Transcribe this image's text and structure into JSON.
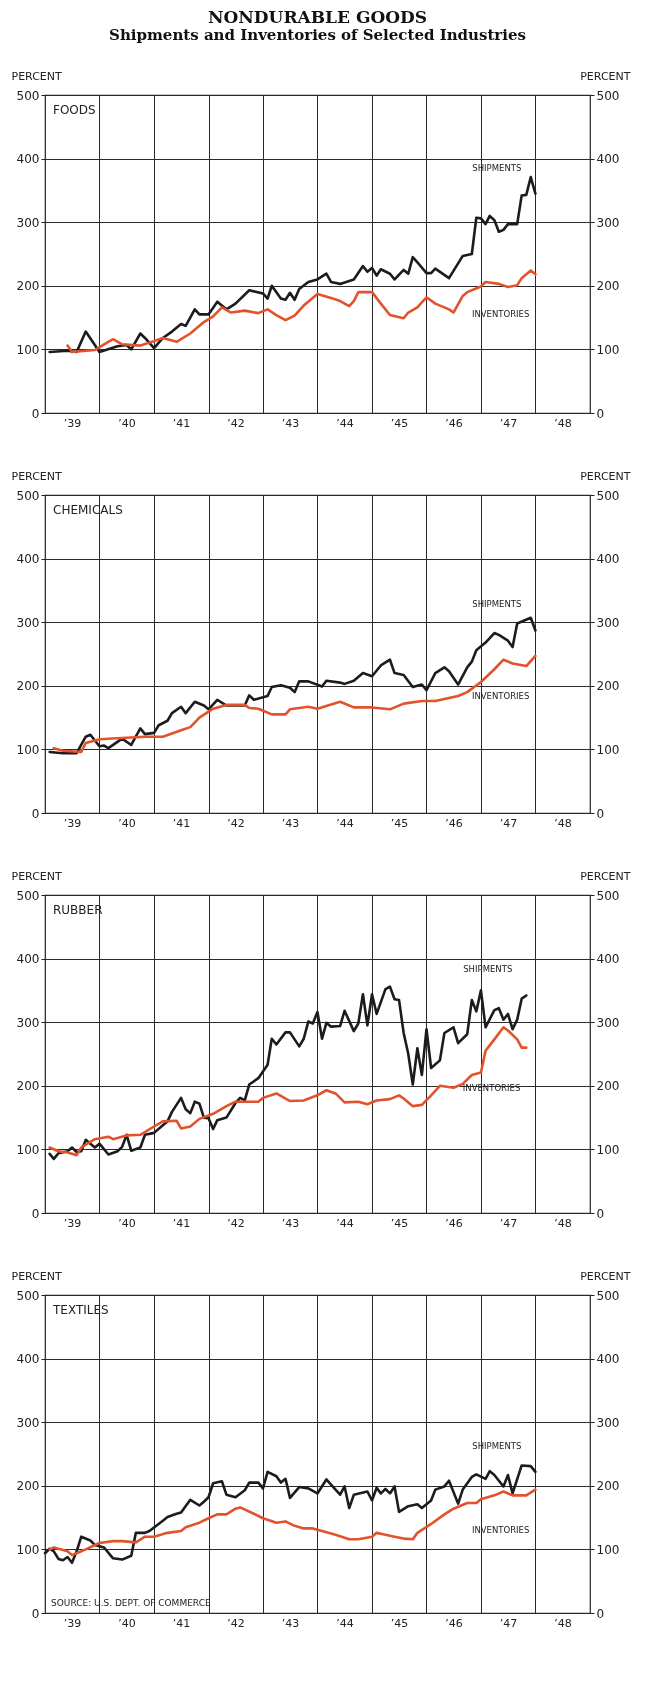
{
  "chart_data": [
    {
      "type": "line",
      "title": "NONDURABLE GOODS",
      "subtitle": "Shipments and Inventories of Selected Industries",
      "ylabel": "PERCENT",
      "y2label": "PERCENT",
      "annotations": [
        "FOODS"
      ],
      "xlim": [
        "1939",
        "1949"
      ],
      "xticks": [
        {
          "value": "1939-07",
          "label": "’39"
        },
        {
          "value": "1940",
          "label": null
        },
        {
          "value": "1940-07",
          "label": "’40"
        },
        {
          "value": "1941",
          "label": null
        },
        {
          "value": "1941-07",
          "label": "’41"
        },
        {
          "value": "1942",
          "label": null
        },
        {
          "value": "1942-07",
          "label": "’42"
        },
        {
          "value": "1943",
          "label": null
        },
        {
          "value": "1943-07",
          "label": "’43"
        },
        {
          "value": "1944",
          "label": null
        },
        {
          "value": "1944-07",
          "label": "’44"
        },
        {
          "value": "1945",
          "label": null
        },
        {
          "value": "1945-07",
          "label": "’45"
        },
        {
          "value": "1946",
          "label": null
        },
        {
          "value": "1946-07",
          "label": "’46"
        },
        {
          "value": "1947",
          "label": null
        },
        {
          "value": "1947-07",
          "label": "’47"
        },
        {
          "value": "1948",
          "label": null
        },
        {
          "value": "1948-07",
          "label": "’48"
        }
      ],
      "ylim": [
        0,
        500
      ],
      "yticks": [
        0,
        100,
        200,
        300,
        400,
        500
      ],
      "y2lim": [
        0,
        500
      ],
      "y2ticks": [
        0,
        100,
        200,
        300,
        400,
        500
      ],
      "grid": true,
      "series": [
        {
          "name": "SHIPMENTS",
          "color": "#1c1c1c",
          "x": [
            "1939-02",
            "1939-06",
            "1939-08",
            "1939-10",
            "1939-12",
            "1940-01",
            "1940-05",
            "1940-07",
            "1940-08",
            "1940-10",
            "1940-11",
            "1941-01",
            "1941-03",
            "1941-05",
            "1941-07",
            "1941-08",
            "1941-10",
            "1941-11",
            "1942-01",
            "1942-03",
            "1942-05",
            "1942-07",
            "1942-10",
            "1943-01",
            "1943-02",
            "1943-03",
            "1943-05",
            "1943-06",
            "1943-07",
            "1943-08",
            "1943-09",
            "1943-11",
            "1944-01",
            "1944-03",
            "1944-04",
            "1944-06",
            "1944-09",
            "1944-11",
            "1944-12",
            "1945-01",
            "1945-02",
            "1945-03",
            "1945-05",
            "1945-06",
            "1945-08",
            "1945-09",
            "1945-10",
            "1945-11",
            "1946-01",
            "1946-02",
            "1946-03",
            "1946-06",
            "1946-09",
            "1946-11",
            "1946-12",
            "1947-01",
            "1947-02",
            "1947-03",
            "1947-04",
            "1947-05",
            "1947-06",
            "1947-07",
            "1947-09",
            "1947-10",
            "1947-11",
            "1947-12",
            "1948-01"
          ],
          "values": [
            96,
            98,
            96,
            128,
            107,
            96,
            105,
            107,
            100,
            125,
            118,
            102,
            118,
            128,
            140,
            137,
            163,
            155,
            155,
            175,
            163,
            172,
            193,
            188,
            180,
            200,
            180,
            178,
            189,
            178,
            195,
            206,
            210,
            219,
            206,
            203,
            210,
            231,
            222,
            228,
            216,
            226,
            219,
            210,
            225,
            219,
            245,
            237,
            220,
            220,
            227,
            212,
            247,
            250,
            307,
            306,
            297,
            310,
            303,
            285,
            288,
            297,
            297,
            342,
            343,
            371,
            345
          ]
        },
        {
          "name": "INVENTORIES",
          "color": "#e2522c",
          "x": [
            "1939-06",
            "1939-07",
            "1939-12",
            "1940-02",
            "1940-04",
            "1940-06",
            "1940-10",
            "1941-01",
            "1941-03",
            "1941-06",
            "1941-09",
            "1941-12",
            "1942-02",
            "1942-04",
            "1942-06",
            "1942-09",
            "1942-12",
            "1943-02",
            "1943-04",
            "1943-06",
            "1943-08",
            "1943-10",
            "1944-01",
            "1944-04",
            "1944-06",
            "1944-08",
            "1944-09",
            "1944-10",
            "1945-01",
            "1945-03",
            "1945-05",
            "1945-08",
            "1945-09",
            "1945-11",
            "1946-01",
            "1946-03",
            "1946-06",
            "1946-07",
            "1946-09",
            "1946-10",
            "1947-01",
            "1947-02",
            "1947-05",
            "1947-07",
            "1947-09",
            "1947-10",
            "1947-12",
            "1948-01"
          ],
          "values": [
            106,
            96,
            99,
            108,
            116,
            108,
            106,
            113,
            118,
            112,
            125,
            143,
            152,
            166,
            158,
            161,
            157,
            163,
            154,
            146,
            153,
            169,
            187,
            181,
            176,
            168,
            176,
            190,
            190,
            172,
            154,
            149,
            158,
            166,
            182,
            172,
            163,
            158,
            184,
            190,
            199,
            206,
            203,
            198,
            201,
            212,
            224,
            218
          ]
        }
      ]
    },
    {
      "type": "line",
      "ylabel": "PERCENT",
      "y2label": "PERCENT",
      "annotations": [
        "CHEMICALS"
      ],
      "xlim": [
        "1939",
        "1949"
      ],
      "xticks": [
        {
          "value": "1939-07",
          "label": "’39"
        },
        {
          "value": "1940",
          "label": null
        },
        {
          "value": "1940-07",
          "label": "’40"
        },
        {
          "value": "1941",
          "label": null
        },
        {
          "value": "1941-07",
          "label": "’41"
        },
        {
          "value": "1942",
          "label": null
        },
        {
          "value": "1942-07",
          "label": "’42"
        },
        {
          "value": "1943",
          "label": null
        },
        {
          "value": "1943-07",
          "label": "’43"
        },
        {
          "value": "1944",
          "label": null
        },
        {
          "value": "1944-07",
          "label": "’44"
        },
        {
          "value": "1945",
          "label": null
        },
        {
          "value": "1945-07",
          "label": "’45"
        },
        {
          "value": "1946",
          "label": null
        },
        {
          "value": "1946-07",
          "label": "’46"
        },
        {
          "value": "1947",
          "label": null
        },
        {
          "value": "1947-07",
          "label": "’47"
        },
        {
          "value": "1948",
          "label": null
        },
        {
          "value": "1948-07",
          "label": "’48"
        }
      ],
      "ylim": [
        0,
        500
      ],
      "yticks": [
        0,
        100,
        200,
        300,
        400,
        500
      ],
      "y2lim": [
        0,
        500
      ],
      "y2ticks": [
        0,
        100,
        200,
        300,
        400,
        500
      ],
      "grid": true,
      "series": [
        {
          "name": "SHIPMENTS",
          "color": "#1c1c1c",
          "x": [
            "1939-02",
            "1939-05",
            "1939-08",
            "1939-10",
            "1939-11",
            "1940-01",
            "1940-02",
            "1940-03",
            "1940-06",
            "1940-08",
            "1940-10",
            "1940-11",
            "1941-01",
            "1941-02",
            "1941-04",
            "1941-05",
            "1941-07",
            "1941-08",
            "1941-10",
            "1941-12",
            "1942-01",
            "1942-03",
            "1942-05",
            "1942-09",
            "1942-10",
            "1942-11",
            "1943-02",
            "1943-03",
            "1943-05",
            "1943-07",
            "1943-08",
            "1943-09",
            "1943-11",
            "1944-02",
            "1944-03",
            "1944-06",
            "1944-07",
            "1944-09",
            "1944-11",
            "1945-01",
            "1945-03",
            "1945-05",
            "1945-06",
            "1945-08",
            "1945-10",
            "1945-12",
            "1946-01",
            "1946-03",
            "1946-05",
            "1946-06",
            "1946-08",
            "1946-10",
            "1946-11",
            "1946-12",
            "1947-02",
            "1947-04",
            "1947-05",
            "1947-07",
            "1947-08",
            "1947-09",
            "1947-12",
            "1948-01"
          ],
          "values": [
            96,
            94,
            94,
            120,
            123,
            105,
            106,
            102,
            117,
            107,
            133,
            124,
            126,
            138,
            145,
            157,
            167,
            157,
            175,
            169,
            163,
            178,
            169,
            169,
            185,
            178,
            184,
            198,
            201,
            197,
            190,
            207,
            207,
            199,
            208,
            205,
            203,
            208,
            220,
            215,
            232,
            241,
            220,
            217,
            198,
            202,
            193,
            220,
            229,
            223,
            202,
            229,
            238,
            256,
            268,
            283,
            280,
            271,
            261,
            298,
            307,
            287
          ]
        },
        {
          "name": "INVENTORIES",
          "color": "#e2522c",
          "x": [
            "1939-03",
            "1939-05",
            "1939-09",
            "1939-10",
            "1940-01",
            "1940-06",
            "1940-11",
            "1941-03",
            "1941-07",
            "1941-09",
            "1941-11",
            "1942-02",
            "1942-05",
            "1942-09",
            "1942-10",
            "1942-12",
            "1943-03",
            "1943-06",
            "1943-07",
            "1943-11",
            "1944-01",
            "1944-06",
            "1944-09",
            "1945-01",
            "1945-05",
            "1945-08",
            "1945-12",
            "1946-03",
            "1946-08",
            "1946-10",
            "1947-01",
            "1947-04",
            "1947-06",
            "1947-08",
            "1947-11",
            "1948-01"
          ],
          "values": [
            102,
            98,
            96,
            110,
            116,
            118,
            120,
            120,
            130,
            135,
            150,
            164,
            170,
            170,
            165,
            164,
            155,
            155,
            163,
            167,
            164,
            175,
            166,
            166,
            163,
            172,
            176,
            176,
            184,
            190,
            206,
            226,
            241,
            235,
            231,
            247
          ]
        }
      ]
    },
    {
      "type": "line",
      "ylabel": "PERCENT",
      "y2label": "PERCENT",
      "annotations": [
        "RUBBER"
      ],
      "xlim": [
        "1939",
        "1949"
      ],
      "xticks": [
        {
          "value": "1939-07",
          "label": "’39"
        },
        {
          "value": "1940",
          "label": null
        },
        {
          "value": "1940-07",
          "label": "’40"
        },
        {
          "value": "1941",
          "label": null
        },
        {
          "value": "1941-07",
          "label": "’41"
        },
        {
          "value": "1942",
          "label": null
        },
        {
          "value": "1942-07",
          "label": "’42"
        },
        {
          "value": "1943",
          "label": null
        },
        {
          "value": "1943-07",
          "label": "’43"
        },
        {
          "value": "1944",
          "label": null
        },
        {
          "value": "1944-07",
          "label": "’44"
        },
        {
          "value": "1945",
          "label": null
        },
        {
          "value": "1945-07",
          "label": "’45"
        },
        {
          "value": "1946",
          "label": null
        },
        {
          "value": "1946-07",
          "label": "’46"
        },
        {
          "value": "1947",
          "label": null
        },
        {
          "value": "1947-07",
          "label": "’47"
        },
        {
          "value": "1948",
          "label": null
        },
        {
          "value": "1948-07",
          "label": "’48"
        }
      ],
      "ylim": [
        0,
        500
      ],
      "yticks": [
        0,
        100,
        200,
        300,
        400,
        500
      ],
      "y2lim": [
        0,
        500
      ],
      "y2ticks": [
        0,
        100,
        200,
        300,
        400,
        500
      ],
      "grid": true,
      "series": [
        {
          "name": "SHIPMENTS",
          "color": "#1c1c1c",
          "x": [
            "1939-02",
            "1939-03",
            "1939-04",
            "1939-06",
            "1939-07",
            "1939-08",
            "1939-09",
            "1939-10",
            "1939-12",
            "1940-01",
            "1940-03",
            "1940-05",
            "1940-06",
            "1940-07",
            "1940-08",
            "1940-10",
            "1940-11",
            "1941-01",
            "1941-03",
            "1941-04",
            "1941-05",
            "1941-07",
            "1941-08",
            "1941-09",
            "1941-10",
            "1941-11",
            "1941-12",
            "1942-01",
            "1942-02",
            "1942-03",
            "1942-05",
            "1942-07",
            "1942-08",
            "1942-09",
            "1942-10",
            "1942-12",
            "1943-02",
            "1943-03",
            "1943-04",
            "1943-06",
            "1943-07",
            "1943-09",
            "1943-10",
            "1943-11",
            "1943-12",
            "1944-01",
            "1944-02",
            "1944-03",
            "1944-04",
            "1944-06",
            "1944-07",
            "1944-09",
            "1944-10",
            "1944-11",
            "1944-12",
            "1945-01",
            "1945-02",
            "1945-04",
            "1945-05",
            "1945-06",
            "1945-07",
            "1945-08",
            "1945-09",
            "1945-10",
            "1945-11",
            "1945-12",
            "1946-01",
            "1946-02",
            "1946-04",
            "1946-05",
            "1946-07",
            "1946-08",
            "1946-10",
            "1946-11",
            "1946-12",
            "1947-01",
            "1947-02",
            "1947-04",
            "1947-05",
            "1947-06",
            "1947-07",
            "1947-08",
            "1947-09",
            "1947-10",
            "1947-11"
          ],
          "values": [
            93,
            85,
            94,
            97,
            103,
            96,
            97,
            115,
            103,
            109,
            92,
            97,
            104,
            123,
            98,
            103,
            123,
            126,
            138,
            144,
            159,
            181,
            163,
            157,
            175,
            172,
            150,
            149,
            132,
            146,
            150,
            173,
            181,
            177,
            202,
            212,
            233,
            274,
            265,
            284,
            284,
            262,
            274,
            301,
            298,
            316,
            274,
            299,
            293,
            294,
            318,
            286,
            298,
            344,
            295,
            344,
            313,
            352,
            356,
            336,
            335,
            283,
            250,
            202,
            259,
            217,
            289,
            228,
            240,
            283,
            292,
            267,
            281,
            335,
            317,
            350,
            292,
            319,
            322,
            304,
            313,
            289,
            304,
            337,
            342
          ]
        },
        {
          "name": "INVENTORIES",
          "color": "#e2522c",
          "x": [
            "1939-02",
            "1939-04",
            "1939-06",
            "1939-08",
            "1939-09",
            "1939-12",
            "1940-03",
            "1940-04",
            "1940-07",
            "1940-10",
            "1941-01",
            "1941-03",
            "1941-06",
            "1941-07",
            "1941-09",
            "1941-11",
            "1942-02",
            "1942-05",
            "1942-07",
            "1942-12",
            "1943-01",
            "1943-04",
            "1943-07",
            "1943-10",
            "1944-01",
            "1944-03",
            "1944-05",
            "1944-07",
            "1944-10",
            "1944-12",
            "1945-02",
            "1945-05",
            "1945-07",
            "1945-08",
            "1945-10",
            "1945-12",
            "1946-02",
            "1946-04",
            "1946-07",
            "1946-09",
            "1946-11",
            "1947-01",
            "1947-02",
            "1947-04",
            "1947-06",
            "1947-07",
            "1947-09",
            "1947-10",
            "1947-11"
          ],
          "values": [
            103,
            97,
            95,
            91,
            103,
            116,
            120,
            116,
            122,
            123,
            136,
            144,
            145,
            133,
            136,
            148,
            156,
            168,
            175,
            175,
            181,
            188,
            176,
            177,
            185,
            193,
            188,
            174,
            175,
            171,
            177,
            179,
            185,
            180,
            168,
            170,
            185,
            200,
            197,
            203,
            217,
            221,
            255,
            273,
            292,
            287,
            273,
            260,
            260
          ]
        }
      ]
    },
    {
      "type": "line",
      "ylabel": "PERCENT",
      "y2label": "PERCENT",
      "annotations": [
        "TEXTILES",
        "SOURCE: U.S. DEPT. OF COMMERCE"
      ],
      "xlim": [
        "1939",
        "1949"
      ],
      "xticks": [
        {
          "value": "1939-07",
          "label": "’39"
        },
        {
          "value": "1940",
          "label": null
        },
        {
          "value": "1940-07",
          "label": "’40"
        },
        {
          "value": "1941",
          "label": null
        },
        {
          "value": "1941-07",
          "label": "’41"
        },
        {
          "value": "1942",
          "label": null
        },
        {
          "value": "1942-07",
          "label": "’42"
        },
        {
          "value": "1943",
          "label": null
        },
        {
          "value": "1943-07",
          "label": "’43"
        },
        {
          "value": "1944",
          "label": null
        },
        {
          "value": "1944-07",
          "label": "’44"
        },
        {
          "value": "1945",
          "label": null
        },
        {
          "value": "1945-07",
          "label": "’45"
        },
        {
          "value": "1946",
          "label": null
        },
        {
          "value": "1946-07",
          "label": "’46"
        },
        {
          "value": "1947",
          "label": null
        },
        {
          "value": "1947-07",
          "label": "’47"
        },
        {
          "value": "1948",
          "label": null
        },
        {
          "value": "1948-07",
          "label": "’48"
        }
      ],
      "ylim": [
        0,
        500
      ],
      "yticks": [
        0,
        100,
        200,
        300,
        400,
        500
      ],
      "y2lim": [
        0,
        500
      ],
      "y2ticks": [
        0,
        100,
        200,
        300,
        400,
        500
      ],
      "grid": true,
      "series": [
        {
          "name": "SHIPMENTS",
          "color": "#1c1c1c",
          "x": [
            "1939-01",
            "1939-02",
            "1939-03",
            "1939-04",
            "1939-05",
            "1939-06",
            "1939-07",
            "1939-08",
            "1939-09",
            "1939-11",
            "1939-12",
            "1940-02",
            "1940-04",
            "1940-06",
            "1940-08",
            "1940-09",
            "1940-11",
            "1940-12",
            "1941-03",
            "1941-04",
            "1941-06",
            "1941-07",
            "1941-09",
            "1941-11",
            "1941-12",
            "1942-01",
            "1942-02",
            "1942-04",
            "1942-05",
            "1942-07",
            "1942-09",
            "1942-10",
            "1942-12",
            "1943-01",
            "1943-02",
            "1943-04",
            "1943-05",
            "1943-06",
            "1943-07",
            "1943-09",
            "1943-11",
            "1944-01",
            "1944-03",
            "1944-04",
            "1944-06",
            "1944-07",
            "1944-08",
            "1944-09",
            "1944-12",
            "1945-01",
            "1945-02",
            "1945-03",
            "1945-04",
            "1945-05",
            "1945-06",
            "1945-07",
            "1945-09",
            "1945-11",
            "1945-12",
            "1946-02",
            "1946-03",
            "1946-05",
            "1946-06",
            "1946-08",
            "1946-09",
            "1946-11",
            "1946-12",
            "1947-02",
            "1947-03",
            "1947-04",
            "1947-06",
            "1947-07",
            "1947-08",
            "1947-10",
            "1947-12",
            "1948-01"
          ],
          "values": [
            94,
            101,
            97,
            85,
            83,
            88,
            79,
            97,
            120,
            114,
            107,
            103,
            86,
            84,
            90,
            126,
            126,
            129,
            145,
            151,
            156,
            158,
            178,
            169,
            175,
            182,
            204,
            207,
            186,
            182,
            193,
            205,
            205,
            196,
            222,
            215,
            205,
            211,
            181,
            198,
            196,
            188,
            210,
            202,
            186,
            199,
            165,
            186,
            191,
            177,
            197,
            188,
            195,
            188,
            199,
            159,
            168,
            171,
            165,
            177,
            194,
            199,
            208,
            172,
            194,
            214,
            218,
            211,
            223,
            217,
            199,
            217,
            188,
            232,
            231,
            222
          ]
        },
        {
          "name": "INVENTORIES",
          "color": "#e2522c",
          "x": [
            "1939-02",
            "1939-03",
            "1939-06",
            "1939-07",
            "1939-09",
            "1939-10",
            "1940-01",
            "1940-04",
            "1940-06",
            "1940-09",
            "1940-11",
            "1941-01",
            "1941-04",
            "1941-07",
            "1941-08",
            "1941-11",
            "1942-01",
            "1942-03",
            "1942-05",
            "1942-07",
            "1942-08",
            "1942-11",
            "1943-01",
            "1943-04",
            "1943-06",
            "1943-08",
            "1943-10",
            "1943-12",
            "1944-02",
            "1944-05",
            "1944-08",
            "1944-10",
            "1945-01",
            "1945-02",
            "1945-04",
            "1945-06",
            "1945-08",
            "1945-10",
            "1945-11",
            "1946-02",
            "1946-05",
            "1946-07",
            "1946-10",
            "1946-12",
            "1947-01",
            "1947-04",
            "1947-06",
            "1947-08",
            "1947-11",
            "1948-01"
          ],
          "values": [
            100,
            103,
            97,
            91,
            97,
            100,
            110,
            113,
            113,
            111,
            120,
            120,
            126,
            129,
            135,
            142,
            149,
            155,
            155,
            164,
            166,
            156,
            149,
            142,
            144,
            137,
            133,
            133,
            129,
            123,
            116,
            116,
            120,
            126,
            123,
            120,
            117,
            116,
            126,
            140,
            155,
            164,
            173,
            173,
            179,
            185,
            191,
            185,
            185,
            194
          ]
        }
      ]
    }
  ]
}
